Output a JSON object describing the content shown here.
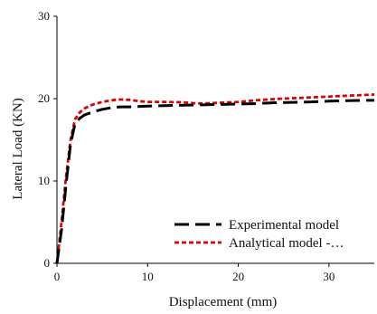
{
  "chart_data": {
    "type": "line",
    "xlabel": "Displacement (mm)",
    "ylabel": "Lateral Load (KN)",
    "xlim": [
      0,
      35
    ],
    "ylim": [
      0,
      30
    ],
    "x_ticks": [
      0,
      10,
      20,
      30
    ],
    "y_ticks": [
      0,
      10,
      20,
      30
    ],
    "grid": false,
    "legend_position": "bottom-right",
    "series": [
      {
        "name": "Experimental model",
        "color": "#000000",
        "dash": "long-dash",
        "points": [
          [
            0,
            0
          ],
          [
            0.5,
            4
          ],
          [
            1,
            9.5
          ],
          [
            1.5,
            14.5
          ],
          [
            2,
            17
          ],
          [
            2.5,
            17.6
          ],
          [
            3,
            18
          ],
          [
            4,
            18.4
          ],
          [
            5,
            18.7
          ],
          [
            6,
            18.9
          ],
          [
            7,
            19
          ],
          [
            8,
            19
          ],
          [
            10,
            19.1
          ],
          [
            12,
            19.15
          ],
          [
            14,
            19.2
          ],
          [
            16,
            19.25
          ],
          [
            18,
            19.3
          ],
          [
            20,
            19.35
          ],
          [
            22,
            19.4
          ],
          [
            24,
            19.5
          ],
          [
            26,
            19.55
          ],
          [
            28,
            19.6
          ],
          [
            30,
            19.7
          ],
          [
            32,
            19.75
          ],
          [
            34,
            19.8
          ],
          [
            35,
            19.8
          ]
        ]
      },
      {
        "name": "Analytical model -…",
        "color": "#e00000",
        "dash": "short-dash",
        "points": [
          [
            0,
            0
          ],
          [
            0.5,
            5
          ],
          [
            1,
            10.5
          ],
          [
            1.5,
            15
          ],
          [
            2,
            17.5
          ],
          [
            2.5,
            18.3
          ],
          [
            3,
            18.8
          ],
          [
            4,
            19.3
          ],
          [
            5,
            19.6
          ],
          [
            6,
            19.8
          ],
          [
            7,
            19.9
          ],
          [
            8,
            19.85
          ],
          [
            9,
            19.7
          ],
          [
            10,
            19.6
          ],
          [
            12,
            19.6
          ],
          [
            14,
            19.55
          ],
          [
            15,
            19.45
          ],
          [
            16,
            19.4
          ],
          [
            18,
            19.5
          ],
          [
            20,
            19.6
          ],
          [
            22,
            19.8
          ],
          [
            24,
            19.95
          ],
          [
            26,
            20.05
          ],
          [
            28,
            20.15
          ],
          [
            30,
            20.25
          ],
          [
            32,
            20.35
          ],
          [
            34,
            20.45
          ],
          [
            35,
            20.5
          ]
        ]
      }
    ]
  }
}
